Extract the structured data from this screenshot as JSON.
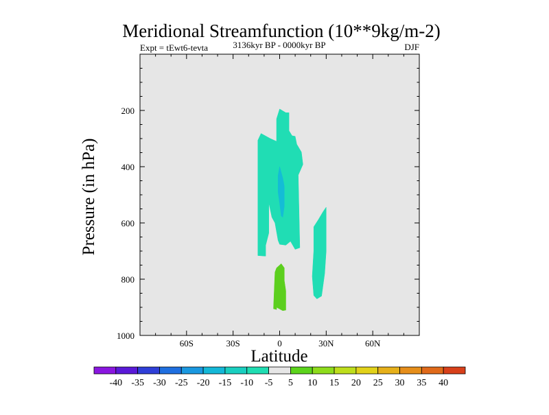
{
  "chart_data": {
    "type": "filled-contour",
    "title": "Meridional Streamfunction (10**9kg/m-2)",
    "left_string": "Expt = tEwt6-tevta",
    "center_string": "3136kyr BP - 0000kyr BP",
    "right_string": "DJF",
    "xlabel": "Latitude",
    "ylabel": "Pressure (in hPa)",
    "x_range": [
      -90,
      90
    ],
    "y_range": [
      0,
      1000
    ],
    "y_reversed": true,
    "x_ticks": [
      {
        "value": -60,
        "label": "60S"
      },
      {
        "value": -30,
        "label": "30S"
      },
      {
        "value": 0,
        "label": "0"
      },
      {
        "value": 30,
        "label": "30N"
      },
      {
        "value": 60,
        "label": "60N"
      }
    ],
    "y_ticks": [
      {
        "value": 200,
        "label": "200"
      },
      {
        "value": 400,
        "label": "400"
      },
      {
        "value": 600,
        "label": "600"
      },
      {
        "value": 800,
        "label": "800"
      },
      {
        "value": 1000,
        "label": "1000"
      }
    ],
    "background_color": "#e6e6e6",
    "levels": [
      -40,
      -35,
      -30,
      -25,
      -20,
      -15,
      -10,
      -5,
      5,
      10,
      15,
      20,
      25,
      30,
      35,
      40
    ],
    "colorbar_colors": [
      "#8a16e0",
      "#5a19d8",
      "#2f3fd8",
      "#1f6fe0",
      "#1a98e0",
      "#14b8d8",
      "#19cfc0",
      "#1fddb2",
      "#e6e6e6",
      "#5cd41c",
      "#8edc1c",
      "#bede1c",
      "#e2d21a",
      "#e6b01a",
      "#e68e1a",
      "#e06a1a",
      "#d8401a"
    ],
    "regions": [
      {
        "name": "region-nh-cell-upper",
        "range": "-10 to -5",
        "color": "#20ddb4",
        "points": [
          [
            -9,
            718
          ],
          [
            -14,
            716
          ],
          [
            -14,
            306
          ],
          [
            -12,
            282
          ],
          [
            -6,
            300
          ],
          [
            -2,
            310
          ],
          [
            -2,
            230
          ],
          [
            0,
            195
          ],
          [
            4,
            208
          ],
          [
            6,
            208
          ],
          [
            6,
            272
          ],
          [
            8,
            290
          ],
          [
            10,
            292
          ],
          [
            11,
            320
          ],
          [
            14,
            348
          ],
          [
            15,
            392
          ],
          [
            12,
            430
          ],
          [
            13,
            688
          ],
          [
            10,
            694
          ],
          [
            7,
            665
          ],
          [
            4,
            679
          ],
          [
            0,
            676
          ],
          [
            -1,
            662
          ],
          [
            -3,
            600
          ],
          [
            -5,
            580
          ],
          [
            -7,
            528
          ],
          [
            -7,
            636
          ],
          [
            -9,
            680
          ]
        ]
      },
      {
        "name": "region-core",
        "range": "-15 to -10",
        "color": "#14bcd6",
        "points": [
          [
            -1,
            452
          ],
          [
            -1,
            432
          ],
          [
            0,
            400
          ],
          [
            2,
            440
          ],
          [
            3,
            470
          ],
          [
            3,
            500
          ],
          [
            3,
            540
          ],
          [
            2,
            580
          ],
          [
            1,
            575
          ],
          [
            0,
            530
          ],
          [
            -1,
            490
          ]
        ]
      },
      {
        "name": "region-sh-cell-lower",
        "range": "-10 to -5",
        "color": "#20ddb4",
        "points": [
          [
            22,
            858
          ],
          [
            24,
            870
          ],
          [
            27,
            860
          ],
          [
            29,
            780
          ],
          [
            30,
            700
          ],
          [
            30,
            544
          ],
          [
            28,
            560
          ],
          [
            25,
            588
          ],
          [
            22,
            614
          ],
          [
            22,
            700
          ],
          [
            21,
            790
          ]
        ]
      },
      {
        "name": "region-positive-lower",
        "range": "5 to 10",
        "color": "#5ccf1e",
        "points": [
          [
            -4,
            905
          ],
          [
            -2,
            908
          ],
          [
            -2,
            900
          ],
          [
            2,
            912
          ],
          [
            4,
            910
          ],
          [
            4,
            875
          ],
          [
            4,
            842
          ],
          [
            3,
            805
          ],
          [
            3,
            760
          ],
          [
            1,
            745
          ],
          [
            -2,
            760
          ],
          [
            -3,
            775
          ]
        ]
      }
    ]
  }
}
